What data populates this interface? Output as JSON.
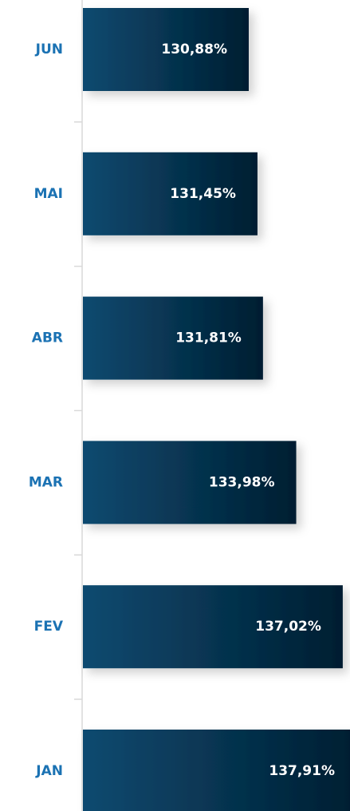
{
  "chart_data": {
    "type": "bar",
    "orientation": "horizontal",
    "categories": [
      "JUN",
      "MAI",
      "ABR",
      "MAR",
      "FEV",
      "JAN"
    ],
    "values": [
      130.88,
      131.45,
      131.81,
      133.98,
      137.02,
      137.91
    ],
    "value_labels": [
      "130,88%",
      "131,45%",
      "131,81%",
      "133,98%",
      "137,02%",
      "137,91%"
    ],
    "color": "#0a4568"
  }
}
